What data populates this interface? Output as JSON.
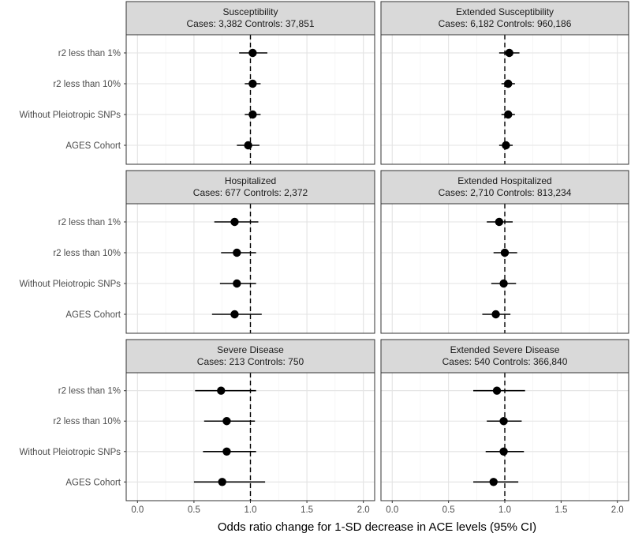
{
  "chart_data": {
    "type": "forest",
    "xlabel": "Odds ratio change for 1-SD decrease in ACE levels (95% CI)",
    "xlim": [
      -0.1,
      2.1
    ],
    "xticks": [
      0.0,
      0.5,
      1.0,
      1.5,
      2.0
    ],
    "xtick_labels": [
      "0.0",
      "0.5",
      "1.0",
      "1.5",
      "2.0"
    ],
    "reference_line": 1.0,
    "methods": [
      "r2 less than 1%",
      "r2 less than 10%",
      "Without Pleiotropic SNPs",
      "AGES Cohort"
    ],
    "panels": [
      {
        "id": "susceptibility",
        "title": "Susceptibility",
        "subtitle": "Cases: 3,382 Controls: 37,851",
        "estimates": [
          {
            "method": "r2 less than 1%",
            "or": 1.02,
            "lo": 0.9,
            "hi": 1.15
          },
          {
            "method": "r2 less than 10%",
            "or": 1.02,
            "lo": 0.95,
            "hi": 1.09
          },
          {
            "method": "Without Pleiotropic SNPs",
            "or": 1.02,
            "lo": 0.95,
            "hi": 1.09
          },
          {
            "method": "AGES Cohort",
            "or": 0.98,
            "lo": 0.88,
            "hi": 1.08
          }
        ]
      },
      {
        "id": "extended-susceptibility",
        "title": "Extended Susceptibility",
        "subtitle": "Cases: 6,182 Controls: 960,186",
        "estimates": [
          {
            "method": "r2 less than 1%",
            "or": 1.04,
            "lo": 0.95,
            "hi": 1.13
          },
          {
            "method": "r2 less than 10%",
            "or": 1.03,
            "lo": 0.97,
            "hi": 1.09
          },
          {
            "method": "Without Pleiotropic SNPs",
            "or": 1.03,
            "lo": 0.97,
            "hi": 1.09
          },
          {
            "method": "AGES Cohort",
            "or": 1.01,
            "lo": 0.95,
            "hi": 1.07
          }
        ]
      },
      {
        "id": "hospitalized",
        "title": "Hospitalized",
        "subtitle": "Cases: 677 Controls: 2,372",
        "estimates": [
          {
            "method": "r2 less than 1%",
            "or": 0.86,
            "lo": 0.68,
            "hi": 1.07
          },
          {
            "method": "r2 less than 10%",
            "or": 0.88,
            "lo": 0.74,
            "hi": 1.05
          },
          {
            "method": "Without Pleiotropic SNPs",
            "or": 0.88,
            "lo": 0.73,
            "hi": 1.05
          },
          {
            "method": "AGES Cohort",
            "or": 0.86,
            "lo": 0.66,
            "hi": 1.1
          }
        ]
      },
      {
        "id": "extended-hospitalized",
        "title": "Extended Hospitalized",
        "subtitle": "Cases: 2,710 Controls: 813,234",
        "estimates": [
          {
            "method": "r2 less than 1%",
            "or": 0.95,
            "lo": 0.84,
            "hi": 1.07
          },
          {
            "method": "r2 less than 10%",
            "or": 1.0,
            "lo": 0.9,
            "hi": 1.11
          },
          {
            "method": "Without Pleiotropic SNPs",
            "or": 0.99,
            "lo": 0.88,
            "hi": 1.1
          },
          {
            "method": "AGES Cohort",
            "or": 0.92,
            "lo": 0.8,
            "hi": 1.05
          }
        ]
      },
      {
        "id": "severe-disease",
        "title": "Severe Disease",
        "subtitle": "Cases: 213 Controls: 750",
        "estimates": [
          {
            "method": "r2 less than 1%",
            "or": 0.74,
            "lo": 0.51,
            "hi": 1.05
          },
          {
            "method": "r2 less than 10%",
            "or": 0.79,
            "lo": 0.59,
            "hi": 1.04
          },
          {
            "method": "Without Pleiotropic SNPs",
            "or": 0.79,
            "lo": 0.58,
            "hi": 1.05
          },
          {
            "method": "AGES Cohort",
            "or": 0.75,
            "lo": 0.5,
            "hi": 1.13
          }
        ]
      },
      {
        "id": "extended-severe-disease",
        "title": "Extended Severe Disease",
        "subtitle": "Cases: 540 Controls: 366,840",
        "estimates": [
          {
            "method": "r2 less than 1%",
            "or": 0.93,
            "lo": 0.72,
            "hi": 1.18
          },
          {
            "method": "r2 less than 10%",
            "or": 0.99,
            "lo": 0.84,
            "hi": 1.15
          },
          {
            "method": "Without Pleiotropic SNPs",
            "or": 0.99,
            "lo": 0.83,
            "hi": 1.17
          },
          {
            "method": "AGES Cohort",
            "or": 0.9,
            "lo": 0.72,
            "hi": 1.12
          }
        ]
      }
    ]
  }
}
